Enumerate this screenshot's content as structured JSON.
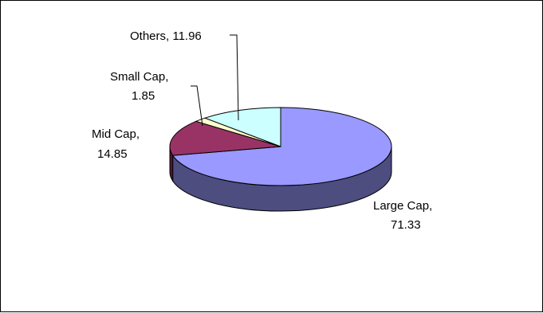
{
  "chart_data": {
    "type": "pie",
    "three_d": true,
    "title": "",
    "legend": "none",
    "slices": [
      {
        "label": "Large Cap",
        "value": 71.33,
        "text_line1": "Large Cap,",
        "text_line2": "71.33",
        "color": "#9999ff",
        "side_color": "#4d4d80"
      },
      {
        "label": "Mid Cap",
        "value": 14.85,
        "text_line1": "Mid Cap,",
        "text_line2": "14.85",
        "color": "#993366",
        "side_color": "#4d1a33"
      },
      {
        "label": "Small Cap",
        "value": 1.85,
        "text_line1": "Small Cap,",
        "text_line2": "1.85",
        "color": "#ffffcc",
        "side_color": "#808066"
      },
      {
        "label": "Others",
        "value": 11.96,
        "text_line1": "Others, 11.96",
        "text_line2": "",
        "color": "#ccffff",
        "side_color": "#668080"
      }
    ]
  },
  "colors": {
    "background": "#ffffff",
    "frame_border": "#000000",
    "slice_outline": "#000000"
  }
}
